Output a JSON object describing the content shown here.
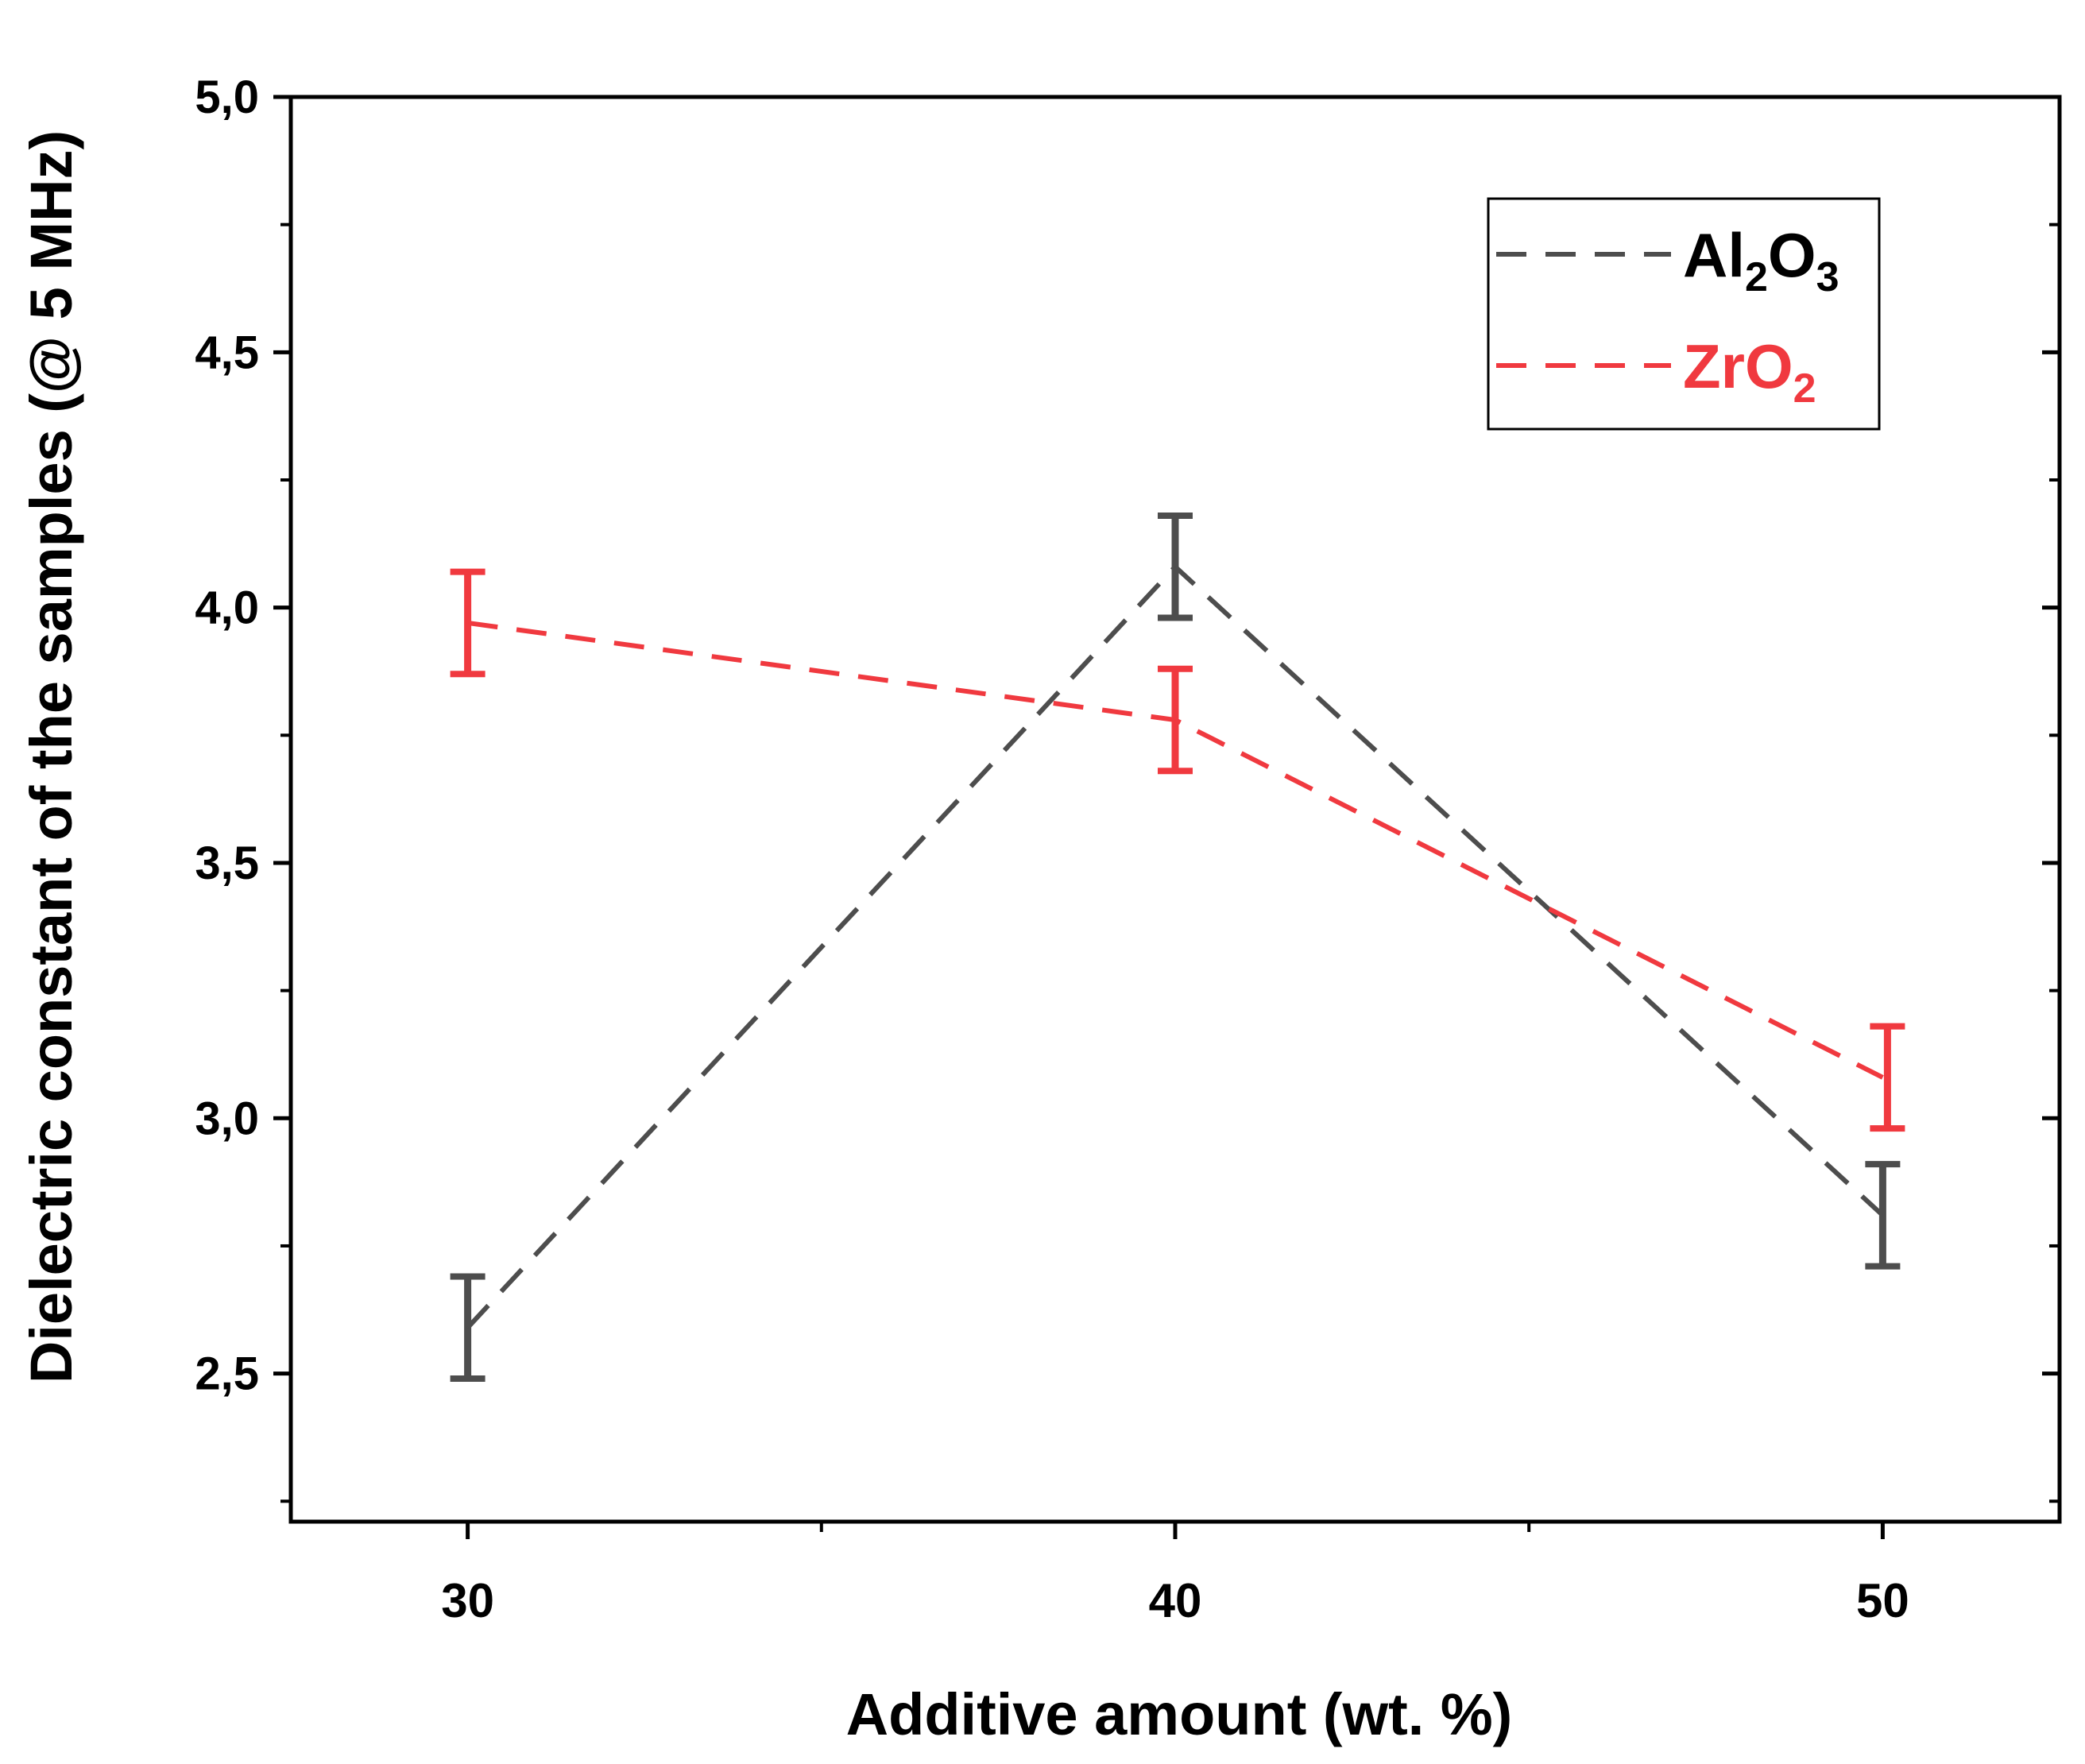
{
  "chart_data": {
    "type": "line",
    "xlabel": "Additive amount (wt. %)",
    "ylabel": "Dielectric constant of the samples (@ 5 MHz)",
    "x": [
      30,
      40,
      50
    ],
    "xlim": [
      27.5,
      52.5
    ],
    "ylim": [
      2.21,
      5.0
    ],
    "x_ticks": [
      30,
      40,
      50
    ],
    "x_tick_labels": [
      "30",
      "40",
      "50"
    ],
    "x_minor_ticks": [
      35,
      45
    ],
    "y_ticks": [
      2.5,
      3.0,
      3.5,
      4.0,
      4.5,
      5.0
    ],
    "y_tick_labels": [
      "2,5",
      "3,0",
      "3,5",
      "4,0",
      "4,5",
      "5,0"
    ],
    "y_minor_ticks": [
      2.25,
      2.75,
      3.25,
      3.75,
      4.25,
      4.75
    ],
    "grid": false,
    "legend_position": "top-right",
    "series": [
      {
        "name": "Al2O3",
        "label_main": "Al",
        "label_sub1": "2",
        "label_mid": "O",
        "label_sub2": "3",
        "color": "#4d4d4d",
        "line_style": "dashed",
        "values": [
          2.59,
          4.08,
          2.81
        ],
        "errors": [
          0.1,
          0.1,
          0.1
        ]
      },
      {
        "name": "ZrO2",
        "label_main": "ZrO",
        "label_sub1": "2",
        "label_mid": "",
        "label_sub2": "",
        "color": "#f0393f",
        "line_style": "dashed",
        "values": [
          3.97,
          3.78,
          3.08
        ],
        "errors": [
          0.1,
          0.1,
          0.1
        ]
      }
    ]
  }
}
